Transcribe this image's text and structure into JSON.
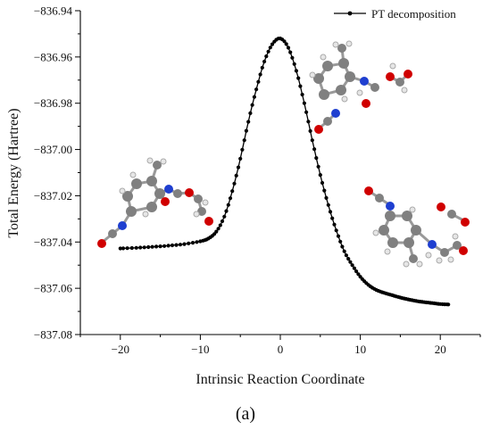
{
  "chart_data": {
    "type": "line",
    "xlabel": "Intrinsic Reaction Coordinate",
    "ylabel": "Total Energy (Hartree)",
    "xlim": [
      -25,
      25
    ],
    "ylim": [
      -837.08,
      -836.94
    ],
    "xticks": [
      -20,
      -10,
      0,
      10,
      20
    ],
    "xtick_labels": [
      "−20",
      "−10",
      "0",
      "10",
      "20"
    ],
    "yticks": [
      -836.94,
      -836.96,
      -836.98,
      -837.0,
      -837.02,
      -837.04,
      -837.06,
      -837.08
    ],
    "ytick_labels": [
      "−836.94",
      "−836.96",
      "−836.98",
      "−837.00",
      "−837.02",
      "−837.04",
      "−837.06",
      "−837.08"
    ],
    "legend_position": "top-right",
    "series": [
      {
        "name": "PT decomposition",
        "color": "#000000",
        "marker": "circle",
        "x": [
          -20,
          -18,
          -16,
          -14,
          -12,
          -10,
          -9,
          -8,
          -7,
          -6,
          -5,
          -4,
          -3,
          -2,
          -1,
          0,
          1,
          2,
          3,
          4,
          5,
          6,
          7,
          8,
          9,
          10,
          11,
          12,
          13,
          14,
          15,
          16,
          17,
          18,
          19,
          20,
          21
        ],
        "y": [
          -837.0428,
          -837.0425,
          -837.0421,
          -837.0416,
          -837.0409,
          -837.0397,
          -837.0385,
          -837.0355,
          -837.029,
          -837.018,
          -837.004,
          -836.988,
          -836.974,
          -836.962,
          -836.9545,
          -836.952,
          -836.956,
          -836.966,
          -836.98,
          -836.996,
          -837.011,
          -837.024,
          -837.035,
          -837.044,
          -837.05,
          -837.055,
          -837.0585,
          -837.0607,
          -837.062,
          -837.063,
          -837.064,
          -837.0648,
          -837.0655,
          -837.066,
          -837.0664,
          -837.0668,
          -837.067
        ]
      }
    ],
    "caption": "(a)",
    "insets": [
      "molecule-reactant",
      "molecule-transition-state",
      "molecule-products"
    ]
  }
}
